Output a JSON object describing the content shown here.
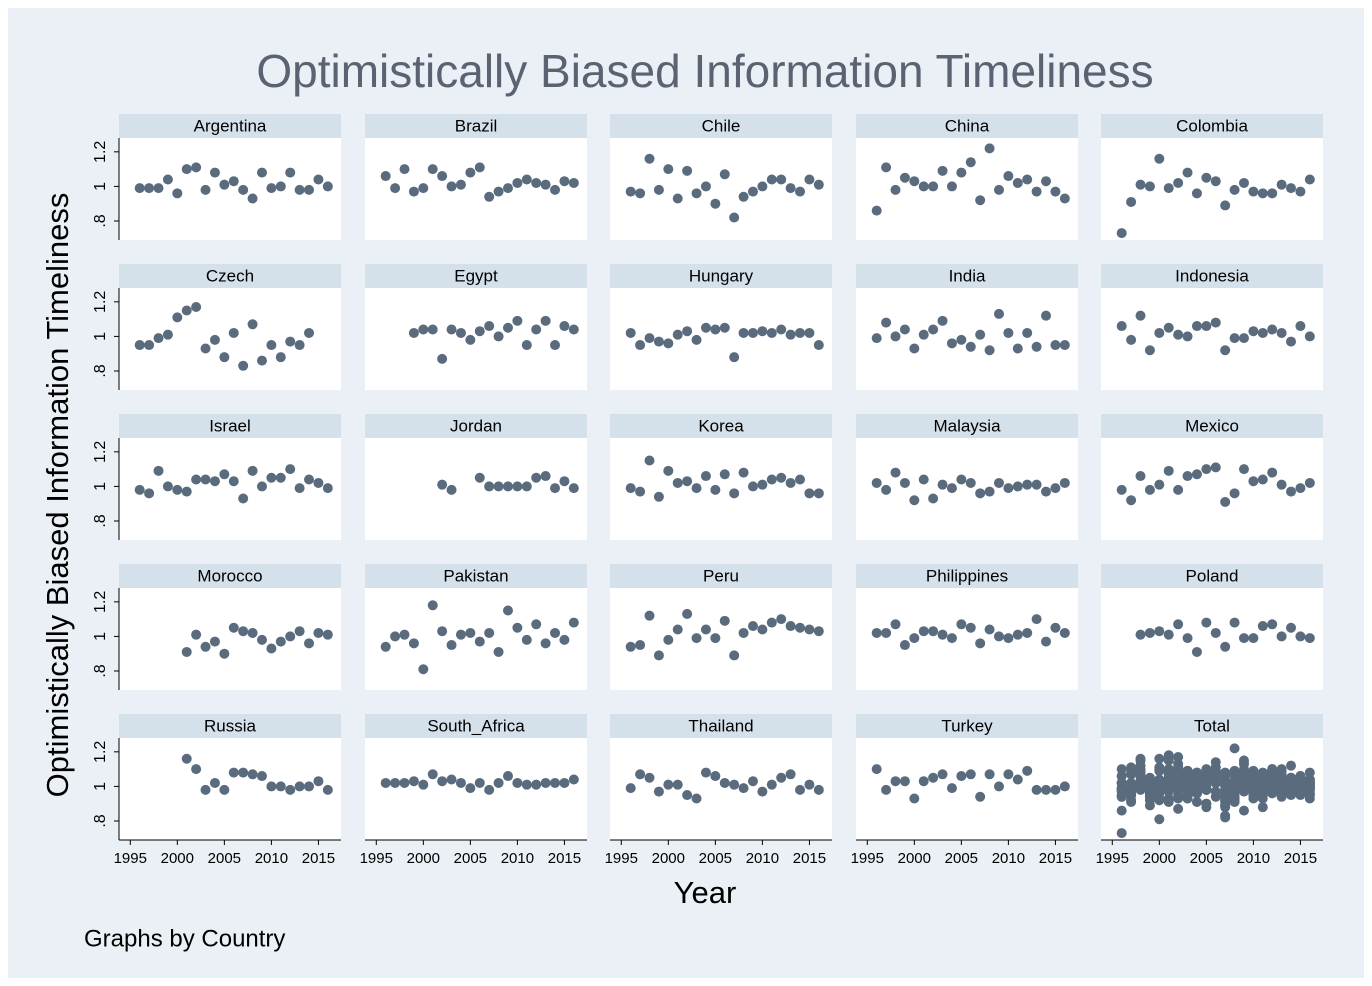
{
  "chart_data": {
    "type": "scatter",
    "title": "Optimistically Biased Information Timeliness",
    "ylabel": "Optimistically Biased Information Timeliness",
    "xlabel": "Year",
    "note": "Graphs by Country",
    "total_label": "Total",
    "color": "#5a6b7e",
    "xlim": [
      1993.8,
      2017.4
    ],
    "ylim": [
      0.69,
      1.28
    ],
    "xticks": [
      1995,
      2000,
      2005,
      2010,
      2015
    ],
    "yticks": [
      {
        "value": 0.8,
        "label": ".8"
      },
      1,
      1.2
    ],
    "x": [
      1996,
      1997,
      1998,
      1999,
      2000,
      2001,
      2002,
      2003,
      2004,
      2005,
      2006,
      2007,
      2008,
      2009,
      2010,
      2011,
      2012,
      2013,
      2014,
      2015,
      2016
    ],
    "series": [
      {
        "name": "Argentina",
        "values": [
          0.99,
          0.99,
          0.99,
          1.04,
          0.96,
          1.1,
          1.11,
          0.98,
          1.08,
          1.01,
          1.03,
          0.98,
          0.93,
          1.08,
          0.99,
          1.0,
          1.08,
          0.98,
          0.98,
          1.04,
          1.0
        ]
      },
      {
        "name": "Brazil",
        "values": [
          1.06,
          0.99,
          1.1,
          0.97,
          0.99,
          1.1,
          1.06,
          1.0,
          1.01,
          1.08,
          1.11,
          0.94,
          0.97,
          0.99,
          1.02,
          1.04,
          1.02,
          1.01,
          0.98,
          1.03,
          1.02
        ]
      },
      {
        "name": "Chile",
        "values": [
          0.97,
          0.96,
          1.16,
          0.98,
          1.1,
          0.93,
          1.09,
          0.96,
          1.0,
          0.9,
          1.07,
          0.82,
          0.94,
          0.97,
          1.0,
          1.04,
          1.04,
          0.99,
          0.97,
          1.04,
          1.01
        ]
      },
      {
        "name": "China",
        "values": [
          0.86,
          1.11,
          0.98,
          1.05,
          1.03,
          1.0,
          1.0,
          1.09,
          1.0,
          1.08,
          1.14,
          0.92,
          1.22,
          0.98,
          1.06,
          1.02,
          1.04,
          0.97,
          1.03,
          0.97,
          0.93
        ]
      },
      {
        "name": "Colombia",
        "values": [
          0.73,
          0.91,
          1.01,
          1.0,
          1.16,
          0.99,
          1.02,
          1.08,
          0.96,
          1.05,
          1.03,
          0.89,
          0.98,
          1.02,
          0.97,
          0.96,
          0.96,
          1.01,
          0.99,
          0.97,
          1.04
        ]
      },
      {
        "name": "Czech",
        "values": [
          0.95,
          0.95,
          0.99,
          1.01,
          1.11,
          1.15,
          1.17,
          0.93,
          0.98,
          0.88,
          1.02,
          0.83,
          1.07,
          0.86,
          0.95,
          0.88,
          0.97,
          0.95,
          1.02,
          null,
          null
        ]
      },
      {
        "name": "Egypt",
        "values": [
          null,
          null,
          null,
          1.02,
          1.04,
          1.04,
          0.87,
          1.04,
          1.02,
          0.98,
          1.03,
          1.06,
          1.0,
          1.05,
          1.09,
          0.95,
          1.04,
          1.09,
          0.95,
          1.06,
          1.04
        ]
      },
      {
        "name": "Hungary",
        "values": [
          1.02,
          0.95,
          0.99,
          0.97,
          0.96,
          1.01,
          1.03,
          0.98,
          1.05,
          1.04,
          1.05,
          0.88,
          1.02,
          1.02,
          1.03,
          1.02,
          1.04,
          1.01,
          1.02,
          1.02,
          0.95
        ]
      },
      {
        "name": "India",
        "values": [
          0.99,
          1.08,
          1.0,
          1.04,
          0.93,
          1.01,
          1.04,
          1.09,
          0.96,
          0.98,
          0.94,
          1.01,
          0.92,
          1.13,
          1.02,
          0.93,
          1.02,
          0.94,
          1.12,
          0.95,
          0.95
        ]
      },
      {
        "name": "Indonesia",
        "values": [
          1.06,
          0.98,
          1.12,
          0.92,
          1.02,
          1.05,
          1.01,
          1.0,
          1.06,
          1.06,
          1.08,
          0.92,
          0.99,
          0.99,
          1.03,
          1.02,
          1.04,
          1.02,
          0.97,
          1.06,
          1.0
        ]
      },
      {
        "name": "Israel",
        "values": [
          0.98,
          0.96,
          1.09,
          1.0,
          0.98,
          0.97,
          1.04,
          1.04,
          1.03,
          1.07,
          1.03,
          0.93,
          1.09,
          1.0,
          1.05,
          1.05,
          1.1,
          0.99,
          1.04,
          1.02,
          0.99
        ]
      },
      {
        "name": "Jordan",
        "values": [
          null,
          null,
          null,
          null,
          null,
          null,
          1.01,
          0.98,
          null,
          null,
          1.05,
          1.0,
          1.0,
          1.0,
          1.0,
          1.0,
          1.05,
          1.06,
          0.99,
          1.03,
          0.99
        ]
      },
      {
        "name": "Korea",
        "values": [
          0.99,
          0.97,
          1.15,
          0.94,
          1.09,
          1.02,
          1.03,
          0.99,
          1.06,
          0.98,
          1.07,
          0.96,
          1.08,
          1.0,
          1.01,
          1.04,
          1.05,
          1.02,
          1.04,
          0.96,
          0.96
        ]
      },
      {
        "name": "Malaysia",
        "values": [
          1.02,
          0.98,
          1.08,
          1.02,
          0.92,
          1.04,
          0.93,
          1.01,
          0.99,
          1.04,
          1.02,
          0.96,
          0.97,
          1.02,
          0.99,
          1.0,
          1.01,
          1.01,
          0.97,
          0.99,
          1.02
        ]
      },
      {
        "name": "Mexico",
        "values": [
          0.98,
          0.92,
          1.06,
          0.98,
          1.01,
          1.09,
          0.98,
          1.06,
          1.07,
          1.1,
          1.11,
          0.91,
          0.96,
          1.1,
          1.03,
          1.04,
          1.08,
          1.01,
          0.97,
          0.99,
          1.02
        ]
      },
      {
        "name": "Morocco",
        "values": [
          null,
          null,
          null,
          null,
          null,
          0.91,
          1.01,
          0.94,
          0.97,
          0.9,
          1.05,
          1.03,
          1.02,
          0.98,
          0.93,
          0.97,
          1.0,
          1.03,
          0.96,
          1.02,
          1.01
        ]
      },
      {
        "name": "Pakistan",
        "values": [
          0.94,
          1.0,
          1.01,
          0.96,
          0.81,
          1.18,
          1.03,
          0.95,
          1.01,
          1.02,
          0.97,
          1.02,
          0.91,
          1.15,
          1.05,
          0.98,
          1.07,
          0.96,
          1.02,
          0.98,
          1.08
        ]
      },
      {
        "name": "Peru",
        "values": [
          0.94,
          0.95,
          1.12,
          0.89,
          0.98,
          1.04,
          1.13,
          0.99,
          1.04,
          0.99,
          1.09,
          0.89,
          1.02,
          1.06,
          1.04,
          1.08,
          1.1,
          1.06,
          1.05,
          1.04,
          1.03
        ]
      },
      {
        "name": "Philippines",
        "values": [
          1.02,
          1.02,
          1.07,
          0.95,
          0.99,
          1.03,
          1.03,
          1.01,
          0.99,
          1.07,
          1.05,
          0.96,
          1.04,
          1.0,
          0.99,
          1.01,
          1.02,
          1.1,
          0.97,
          1.05,
          1.02
        ]
      },
      {
        "name": "Poland",
        "values": [
          null,
          null,
          1.01,
          1.02,
          1.03,
          1.01,
          1.07,
          0.99,
          0.91,
          1.08,
          1.02,
          0.94,
          1.08,
          0.99,
          0.99,
          1.06,
          1.07,
          1.0,
          1.05,
          1.0,
          0.99
        ]
      },
      {
        "name": "Russia",
        "values": [
          null,
          null,
          null,
          null,
          null,
          1.16,
          1.1,
          0.98,
          1.02,
          0.98,
          1.08,
          1.08,
          1.07,
          1.06,
          1.0,
          1.0,
          0.98,
          1.0,
          1.0,
          1.03,
          0.98
        ]
      },
      {
        "name": "South_Africa",
        "values": [
          1.02,
          1.02,
          1.02,
          1.03,
          1.01,
          1.07,
          1.03,
          1.04,
          1.02,
          0.99,
          1.02,
          0.98,
          1.02,
          1.06,
          1.02,
          1.01,
          1.01,
          1.02,
          1.02,
          1.02,
          1.04
        ]
      },
      {
        "name": "Thailand",
        "values": [
          0.99,
          1.07,
          1.05,
          0.97,
          1.01,
          1.01,
          0.95,
          0.93,
          1.08,
          1.06,
          1.02,
          1.01,
          0.99,
          1.03,
          0.97,
          1.01,
          1.05,
          1.07,
          0.98,
          1.01,
          0.98
        ]
      },
      {
        "name": "Turkey",
        "values": [
          1.1,
          0.98,
          1.03,
          1.03,
          0.93,
          1.03,
          1.05,
          1.07,
          0.99,
          1.06,
          1.07,
          0.94,
          1.07,
          1.0,
          1.07,
          1.04,
          1.09,
          0.98,
          0.98,
          0.98,
          1.0
        ]
      }
    ]
  }
}
